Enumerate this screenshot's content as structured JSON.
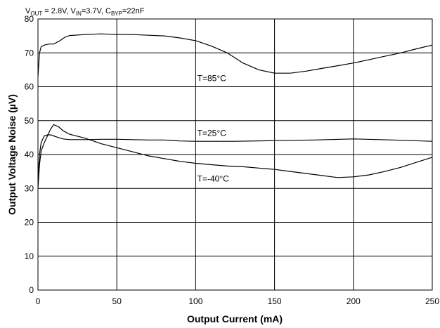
{
  "conditions": {
    "parts": [
      {
        "text": "V",
        "sub": false
      },
      {
        "text": "OUT",
        "sub": true
      },
      {
        "text": " = 2.8V, V",
        "sub": false
      },
      {
        "text": "IN",
        "sub": true
      },
      {
        "text": "=3.7V, C",
        "sub": false
      },
      {
        "text": "BYP",
        "sub": true
      },
      {
        "text": "=22nF",
        "sub": false
      }
    ]
  },
  "chart_data": {
    "type": "line",
    "title": "",
    "xlabel": "Output Current (mA)",
    "ylabel": "Output Voltage Noise (µV)",
    "xlim": [
      0,
      250
    ],
    "ylim": [
      0,
      80
    ],
    "xticks": [
      0,
      50,
      100,
      150,
      200,
      250
    ],
    "yticks": [
      0,
      10,
      20,
      30,
      40,
      50,
      60,
      70,
      80
    ],
    "grid": true,
    "legend": "none",
    "series": [
      {
        "name": "T=85°C",
        "x": [
          0,
          1,
          2,
          4,
          7,
          10,
          14,
          17,
          20,
          30,
          40,
          50,
          60,
          70,
          80,
          90,
          100,
          110,
          120,
          130,
          140,
          150,
          160,
          170,
          180,
          190,
          200,
          210,
          220,
          230,
          240,
          250
        ],
        "y": [
          63,
          70,
          71.8,
          72.3,
          72.6,
          72.6,
          73.6,
          74.6,
          75.1,
          75.4,
          75.6,
          75.4,
          75.4,
          75.2,
          75.0,
          74.4,
          73.6,
          72.0,
          70.0,
          67.0,
          65.0,
          64.0,
          64.0,
          64.6,
          65.4,
          66.2,
          67.0,
          68.0,
          69.0,
          70.0,
          71.2,
          72.3
        ]
      },
      {
        "name": "T=25°C",
        "x": [
          0,
          1,
          2,
          4,
          6,
          8,
          10,
          13,
          16,
          20,
          30,
          40,
          50,
          60,
          70,
          80,
          90,
          100,
          125,
          150,
          175,
          200,
          225,
          250
        ],
        "y": [
          33,
          40,
          43.5,
          45.5,
          45.8,
          45.8,
          45.5,
          45.0,
          44.6,
          44.4,
          44.4,
          44.5,
          44.5,
          44.4,
          44.3,
          44.3,
          44.0,
          43.9,
          43.9,
          44.1,
          44.3,
          44.6,
          44.3,
          43.9
        ]
      },
      {
        "name": "T=-40°C",
        "x": [
          0,
          1,
          2,
          4,
          6,
          8,
          10,
          13,
          16,
          20,
          30,
          40,
          50,
          60,
          70,
          80,
          90,
          100,
          110,
          120,
          130,
          140,
          150,
          160,
          170,
          180,
          190,
          200,
          210,
          220,
          230,
          240,
          250
        ],
        "y": [
          30,
          37,
          41,
          43.5,
          45.5,
          47.5,
          48.8,
          48.2,
          47.0,
          46.0,
          44.8,
          43.2,
          42.0,
          40.8,
          39.6,
          38.8,
          38.0,
          37.4,
          37.0,
          36.6,
          36.4,
          36.0,
          35.6,
          35.0,
          34.4,
          33.8,
          33.2,
          33.4,
          34.0,
          35.0,
          36.2,
          37.7,
          39.2
        ]
      }
    ],
    "annotations": [
      {
        "text": "T=85°C",
        "x": 101,
        "y": 62.5
      },
      {
        "text": "T=25°C",
        "x": 101,
        "y": 46.3
      },
      {
        "text": "T=-40°C",
        "x": 101,
        "y": 32.8
      }
    ]
  }
}
